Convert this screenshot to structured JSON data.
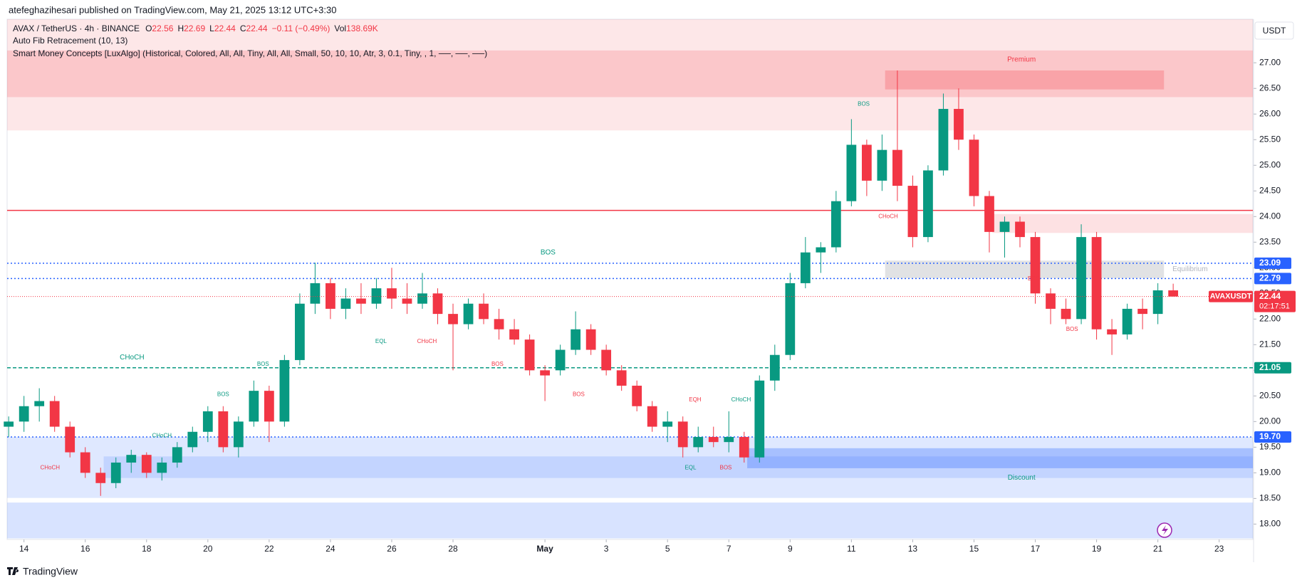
{
  "header": {
    "publisher": "atefeghazihesari published on TradingView.com, May 21, 2025 13:12 UTC+3:30"
  },
  "legend": {
    "symbol": "AVAX / TetherUS · 4h · BINANCE",
    "fields": [
      {
        "key": "O",
        "value": "22.56"
      },
      {
        "key": "H",
        "value": "22.69"
      },
      {
        "key": "L",
        "value": "22.44"
      },
      {
        "key": "C",
        "value": "22.44"
      }
    ],
    "change": "−0.11 (−0.49%)",
    "volume_key": "Vol",
    "volume": "138.69K",
    "indicators": [
      "Auto Fib Retracement (10, 13)",
      "Smart Money Concepts [LuxAlgo] (Historical, Colored, All, All, Tiny, All, All, Small, 50, 10, 10, Atr, 3, 0.1, Tiny, , 1, ──, ──, ──)"
    ]
  },
  "chart_data": {
    "type": "candlestick",
    "currency": "USDT",
    "grid": false,
    "up_color": "#089981",
    "down_color": "#f23645",
    "xlim": [
      -0.1,
      81.2
    ],
    "xticks": [
      {
        "value": 1,
        "label": "14"
      },
      {
        "value": 5,
        "label": "16"
      },
      {
        "value": 9,
        "label": "18"
      },
      {
        "value": 13,
        "label": "20"
      },
      {
        "value": 17,
        "label": "22"
      },
      {
        "value": 21,
        "label": "24"
      },
      {
        "value": 25,
        "label": "26"
      },
      {
        "value": 29,
        "label": "28"
      },
      {
        "value": 35,
        "label": "May"
      },
      {
        "value": 39,
        "label": "3"
      },
      {
        "value": 43,
        "label": "5"
      },
      {
        "value": 47,
        "label": "7"
      },
      {
        "value": 51,
        "label": "9"
      },
      {
        "value": 55,
        "label": "11"
      },
      {
        "value": 59,
        "label": "13"
      },
      {
        "value": 63,
        "label": "15"
      },
      {
        "value": 67,
        "label": "17"
      },
      {
        "value": 71,
        "label": "19"
      },
      {
        "value": 75,
        "label": "21"
      },
      {
        "value": 79,
        "label": "23"
      }
    ],
    "ylim": [
      17.7,
      27.85
    ],
    "yticks": [
      {
        "value": 18,
        "label": "18.00"
      },
      {
        "value": 18.5,
        "label": "18.50"
      },
      {
        "value": 19,
        "label": "19.00"
      },
      {
        "value": 19.5,
        "label": "19.50"
      },
      {
        "value": 20,
        "label": "20.00"
      },
      {
        "value": 20.5,
        "label": "20.50"
      },
      {
        "value": 21,
        "label": "21.00"
      },
      {
        "value": 21.5,
        "label": "21.50"
      },
      {
        "value": 22,
        "label": "22.00"
      },
      {
        "value": 22.5,
        "label": "22.50"
      },
      {
        "value": 23,
        "label": "23.00"
      },
      {
        "value": 23.5,
        "label": "23.50"
      },
      {
        "value": 24,
        "label": "24.00"
      },
      {
        "value": 24.5,
        "label": "24.50"
      },
      {
        "value": 25,
        "label": "25.00"
      },
      {
        "value": 25.5,
        "label": "25.50"
      },
      {
        "value": 26,
        "label": "26.00"
      },
      {
        "value": 26.5,
        "label": "26.50"
      },
      {
        "value": 27,
        "label": "27.00"
      }
    ],
    "open": [
      19.9,
      20.0,
      20.3,
      20.4,
      19.9,
      19.4,
      19.0,
      18.8,
      19.2,
      19.35,
      19.0,
      19.2,
      19.5,
      19.8,
      20.2,
      19.5,
      20.0,
      20.6,
      20.0,
      21.2,
      22.3,
      22.7,
      22.2,
      22.4,
      22.3,
      22.6,
      22.4,
      22.3,
      22.5,
      22.1,
      21.9,
      22.3,
      22.0,
      21.8,
      21.6,
      21.0,
      21.0,
      21.4,
      21.8,
      21.4,
      21.0,
      20.7,
      20.3,
      19.9,
      20.0,
      19.5,
      19.7,
      19.6,
      19.7,
      19.3,
      20.8,
      21.3,
      22.7,
      23.3,
      23.4,
      24.3,
      25.4,
      24.7,
      25.3,
      24.6,
      23.6,
      24.9,
      26.1,
      25.5,
      24.4,
      23.7,
      23.9,
      23.6,
      22.5,
      22.2,
      22.0,
      23.6,
      21.8,
      21.7,
      22.2,
      22.1,
      22.56
    ],
    "high": [
      20.1,
      20.5,
      20.65,
      20.5,
      20.0,
      19.5,
      19.1,
      19.3,
      19.45,
      19.4,
      19.3,
      19.6,
      19.9,
      20.3,
      20.3,
      20.1,
      20.8,
      20.7,
      21.3,
      22.5,
      23.1,
      22.8,
      22.6,
      22.7,
      22.8,
      23.0,
      22.7,
      22.9,
      22.6,
      22.3,
      22.4,
      22.5,
      22.2,
      22.0,
      21.7,
      21.1,
      21.5,
      22.15,
      21.9,
      21.5,
      21.1,
      20.8,
      20.4,
      20.2,
      20.1,
      19.9,
      19.9,
      20.2,
      19.8,
      20.9,
      21.5,
      22.9,
      23.6,
      23.5,
      24.5,
      25.9,
      25.5,
      25.6,
      26.85,
      24.8,
      25.0,
      26.4,
      26.5,
      25.6,
      24.5,
      24.0,
      24.0,
      23.7,
      22.6,
      22.4,
      23.85,
      23.7,
      22.0,
      22.3,
      22.4,
      22.7,
      22.69
    ],
    "low": [
      19.7,
      19.8,
      20.0,
      19.8,
      19.3,
      18.9,
      18.55,
      18.7,
      19.0,
      18.9,
      18.85,
      19.1,
      19.4,
      19.6,
      19.4,
      19.3,
      19.9,
      19.6,
      19.9,
      21.1,
      22.1,
      22.0,
      22.0,
      22.1,
      22.2,
      22.2,
      22.1,
      22.2,
      21.9,
      21.0,
      21.8,
      21.9,
      21.6,
      21.5,
      20.9,
      20.4,
      20.9,
      21.3,
      21.3,
      20.9,
      20.6,
      20.2,
      19.8,
      19.6,
      19.3,
      19.4,
      19.5,
      19.4,
      19.2,
      19.2,
      20.6,
      21.2,
      22.6,
      22.9,
      23.3,
      24.2,
      24.4,
      24.5,
      24.3,
      23.4,
      23.5,
      24.8,
      25.3,
      24.2,
      23.3,
      23.2,
      23.4,
      22.3,
      21.9,
      21.9,
      21.9,
      21.6,
      21.3,
      21.6,
      21.8,
      21.9,
      22.44
    ],
    "close": [
      20.0,
      20.3,
      20.4,
      19.9,
      19.4,
      19.0,
      18.8,
      19.2,
      19.35,
      19.0,
      19.2,
      19.5,
      19.8,
      20.2,
      19.5,
      20.0,
      20.6,
      20.0,
      21.2,
      22.3,
      22.7,
      22.2,
      22.4,
      22.3,
      22.6,
      22.4,
      22.3,
      22.5,
      22.1,
      21.9,
      22.3,
      22.0,
      21.8,
      21.6,
      21.0,
      20.9,
      21.4,
      21.8,
      21.4,
      21.0,
      20.7,
      20.3,
      19.9,
      20.0,
      19.5,
      19.7,
      19.6,
      19.7,
      19.3,
      20.8,
      21.3,
      22.7,
      23.3,
      23.4,
      24.3,
      25.4,
      24.7,
      25.3,
      24.6,
      23.6,
      24.9,
      26.1,
      25.5,
      24.4,
      23.7,
      23.9,
      23.6,
      22.5,
      22.2,
      22.0,
      23.6,
      21.8,
      21.7,
      22.2,
      22.1,
      22.56,
      22.44
    ],
    "zones": [
      {
        "ylim": [
          25.68,
          27.86
        ],
        "color": "rgba(242,54,69,0.12)"
      },
      {
        "ylim": [
          26.33,
          27.24
        ],
        "color": "rgba(242,54,69,0.18)"
      },
      {
        "ylim": [
          26.48,
          26.85
        ],
        "xlim": [
          57.2,
          75.4
        ],
        "color": "rgba(242,54,69,0.25)"
      },
      {
        "ylim": [
          23.68,
          24.05
        ],
        "xlim": [
          64.2,
          81.2
        ],
        "color": "rgba(242,54,69,0.15)"
      },
      {
        "ylim": [
          22.8,
          23.14
        ],
        "xlim": [
          57.2,
          75.4
        ],
        "color": "rgba(120,123,134,0.22)"
      },
      {
        "ylim": [
          18.51,
          19.7
        ],
        "color": "rgba(41,98,255,0.15)"
      },
      {
        "ylim": [
          18.9,
          19.32
        ],
        "xlim": [
          6.2,
          81.2
        ],
        "color": "rgba(41,98,255,0.15)"
      },
      {
        "ylim": [
          19.09,
          19.48
        ],
        "xlim": [
          48.2,
          81.2
        ],
        "color": "rgba(41,98,255,0.3)"
      },
      {
        "ylim": [
          17.72,
          18.42
        ],
        "color": "rgba(41,98,255,0.18)"
      }
    ],
    "levels": [
      {
        "value": 24.12,
        "color": "#f23645",
        "style": "solid",
        "axis_label": false
      },
      {
        "value": 23.09,
        "color": "#2962ff",
        "style": "dotted",
        "axis_label": true
      },
      {
        "value": 22.79,
        "color": "#2962ff",
        "style": "dotted",
        "axis_label": true
      },
      {
        "value": 21.05,
        "color": "#089981",
        "style": "dashed",
        "axis_label": true
      },
      {
        "value": 19.7,
        "label": "19.70",
        "color": "#2962ff",
        "style": "dotted",
        "axis_label": true
      }
    ],
    "last_price": {
      "symbol": "AVAXUSDT",
      "value": 22.44,
      "countdown": "02:17:51"
    },
    "annotations": [
      {
        "text": "BOS",
        "x": 35.2,
        "y": 23.3,
        "color": "#089981"
      },
      {
        "text": "CHoCH",
        "x": 8.05,
        "y": 21.25,
        "color": "#089981"
      },
      {
        "text": "Premium",
        "x": 66.1,
        "y": 27.06,
        "color": "#f23645"
      },
      {
        "text": "Equilibrium",
        "x": 77.1,
        "y": 22.97,
        "color": "#b2b5be"
      },
      {
        "text": "Discount",
        "x": 66.1,
        "y": 18.9,
        "color": "#089981"
      },
      {
        "text": "BOS",
        "x": 55.8,
        "y": 26.19,
        "color": "#089981"
      },
      {
        "text": "CHoCH",
        "x": 57.4,
        "y": 24.0,
        "color": "#f23645"
      },
      {
        "text": "BOS",
        "x": 66.9,
        "y": 22.78,
        "color": "#f23645"
      },
      {
        "text": "BOS",
        "x": 69.4,
        "y": 21.8,
        "color": "#f23645"
      },
      {
        "text": "EQL",
        "x": 24.3,
        "y": 21.56,
        "color": "#089981"
      },
      {
        "text": "CHoCH",
        "x": 27.3,
        "y": 21.56,
        "color": "#f23645"
      },
      {
        "text": "BOS",
        "x": 31.9,
        "y": 21.12,
        "color": "#f23645"
      },
      {
        "text": "BOS",
        "x": 37.2,
        "y": 20.53,
        "color": "#f23645"
      },
      {
        "text": "EQH",
        "x": 44.8,
        "y": 20.42,
        "color": "#f23645"
      },
      {
        "text": "CHoCH",
        "x": 47.8,
        "y": 20.42,
        "color": "#089981"
      },
      {
        "text": "EQL",
        "x": 44.5,
        "y": 19.1,
        "color": "#089981"
      },
      {
        "text": "BOS",
        "x": 46.8,
        "y": 19.1,
        "color": "#f23645"
      },
      {
        "text": "BOS",
        "x": 14.0,
        "y": 20.53,
        "color": "#089981"
      },
      {
        "text": "BOS",
        "x": 16.6,
        "y": 21.12,
        "color": "#089981"
      },
      {
        "text": "CHoCH",
        "x": 2.7,
        "y": 19.1,
        "color": "#f23645"
      },
      {
        "text": "CHoCH",
        "x": 10.0,
        "y": 19.72,
        "color": "#089981"
      }
    ]
  },
  "footer": {
    "brand": "TradingView"
  }
}
